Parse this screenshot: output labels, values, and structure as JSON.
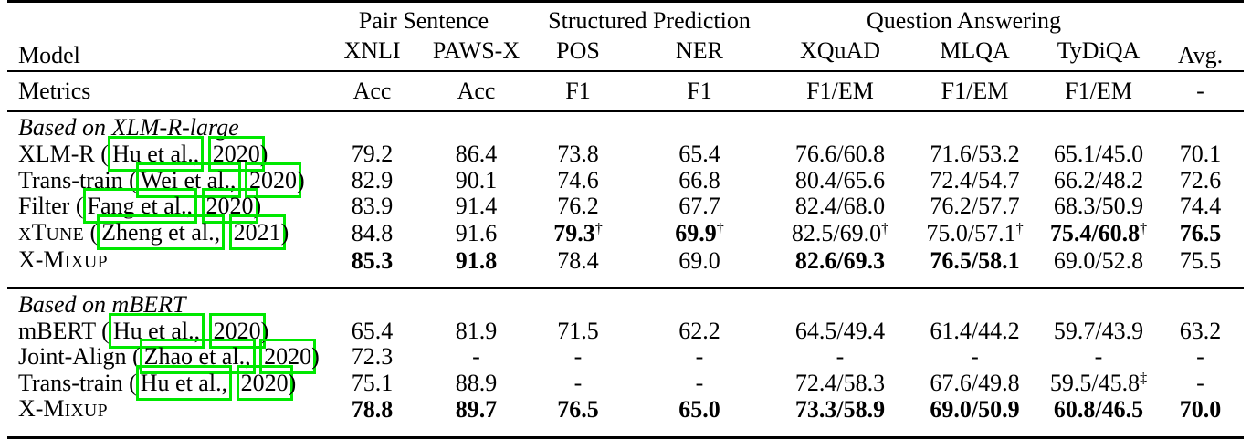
{
  "colors": {
    "citation_box": "#00e800",
    "text": "#000000",
    "background": "#ffffff"
  },
  "citation_format": {
    "open": "(",
    "close": ")",
    "sep": " "
  },
  "table": {
    "header": {
      "model_label": "Model",
      "avg_label": "Avg.",
      "groups": [
        {
          "label": "Pair Sentence",
          "span": 2
        },
        {
          "label": "Structured Prediction",
          "span": 2
        },
        {
          "label": "Question Answering",
          "span": 3
        }
      ],
      "columns": [
        "XNLI",
        "PAWS-X",
        "POS",
        "NER",
        "XQuAD",
        "MLQA",
        "TyDiQA"
      ]
    },
    "metrics": {
      "label": "Metrics",
      "values": [
        "Acc",
        "Acc",
        "F1",
        "F1",
        "F1/EM",
        "F1/EM",
        "F1/EM",
        "-"
      ]
    },
    "sections": [
      {
        "title": "Based on XLM-R-large",
        "rows": [
          {
            "model": {
              "parts": [
                {
                  "t": "XLM-R"
                }
              ],
              "cite": {
                "author": "Hu et al.,",
                "year": "2020"
              }
            },
            "cells": [
              {
                "t": "79.2"
              },
              {
                "t": "86.4"
              },
              {
                "t": "73.8"
              },
              {
                "t": "65.4"
              },
              {
                "t": "76.6/60.8"
              },
              {
                "t": "71.6/53.2"
              },
              {
                "t": "65.1/45.0"
              },
              {
                "t": "70.1"
              }
            ]
          },
          {
            "model": {
              "parts": [
                {
                  "t": "Trans-train"
                }
              ],
              "cite": {
                "author": "Wei et al.,",
                "year": "2020"
              }
            },
            "cells": [
              {
                "t": "82.9"
              },
              {
                "t": "90.1"
              },
              {
                "t": "74.6"
              },
              {
                "t": "66.8"
              },
              {
                "t": "80.4/65.6"
              },
              {
                "t": "72.4/54.7"
              },
              {
                "t": "66.2/48.2"
              },
              {
                "t": "72.6"
              }
            ]
          },
          {
            "model": {
              "parts": [
                {
                  "t": "Filter"
                }
              ],
              "cite": {
                "author": "Fang et al.,",
                "year": "2020"
              }
            },
            "cells": [
              {
                "t": "83.9"
              },
              {
                "t": "91.4"
              },
              {
                "t": "76.2"
              },
              {
                "t": "67.7"
              },
              {
                "t": "82.4/68.0"
              },
              {
                "t": "76.2/57.7"
              },
              {
                "t": "68.3/50.9"
              },
              {
                "t": "74.4"
              }
            ]
          },
          {
            "model": {
              "parts": [
                {
                  "t": "X",
                  "sc": true
                },
                {
                  "t": "T"
                },
                {
                  "t": "UNE",
                  "sc": true
                }
              ],
              "cite": {
                "author": "Zheng et al.,",
                "year": "2021"
              }
            },
            "cells": [
              {
                "t": "84.8"
              },
              {
                "t": "91.6"
              },
              {
                "t": "79.3",
                "bold": true,
                "sup": "†"
              },
              {
                "t": "69.9",
                "bold": true,
                "sup": "†"
              },
              {
                "t": "82.5/69.0",
                "sup": "†"
              },
              {
                "t": "75.0/57.1",
                "sup": "†"
              },
              {
                "t": "75.4/60.8",
                "bold": true,
                "sup": "†"
              },
              {
                "t": "76.5",
                "bold": true
              }
            ]
          },
          {
            "model": {
              "parts": [
                {
                  "t": "X-M"
                },
                {
                  "t": "IXUP",
                  "sc": true
                }
              ]
            },
            "cells": [
              {
                "t": "85.3",
                "bold": true
              },
              {
                "t": "91.8",
                "bold": true
              },
              {
                "t": "78.4"
              },
              {
                "t": "69.0"
              },
              {
                "t": "82.6/69.3",
                "bold": true
              },
              {
                "t": "76.5/58.1",
                "bold": true
              },
              {
                "t": "69.0/52.8"
              },
              {
                "t": "75.5"
              }
            ]
          }
        ]
      },
      {
        "title": "Based on mBERT",
        "rows": [
          {
            "model": {
              "parts": [
                {
                  "t": "mBERT"
                }
              ],
              "cite": {
                "author": "Hu et al.,",
                "year": "2020"
              }
            },
            "cells": [
              {
                "t": "65.4"
              },
              {
                "t": "81.9"
              },
              {
                "t": "71.5"
              },
              {
                "t": "62.2"
              },
              {
                "t": "64.5/49.4"
              },
              {
                "t": "61.4/44.2"
              },
              {
                "t": "59.7/43.9"
              },
              {
                "t": "63.2"
              }
            ]
          },
          {
            "model": {
              "parts": [
                {
                  "t": "Joint-Align"
                }
              ],
              "cite": {
                "author": "Zhao et al.,",
                "year": "2020"
              }
            },
            "cells": [
              {
                "t": "72.3"
              },
              {
                "t": "-"
              },
              {
                "t": "-"
              },
              {
                "t": "-"
              },
              {
                "t": "-"
              },
              {
                "t": "-"
              },
              {
                "t": "-"
              },
              {
                "t": "-"
              }
            ]
          },
          {
            "model": {
              "parts": [
                {
                  "t": "Trans-train"
                }
              ],
              "cite": {
                "author": "Hu et al.,",
                "year": "2020"
              }
            },
            "cells": [
              {
                "t": "75.1"
              },
              {
                "t": "88.9"
              },
              {
                "t": "-"
              },
              {
                "t": "-"
              },
              {
                "t": "72.4/58.3"
              },
              {
                "t": "67.6/49.8"
              },
              {
                "t": "59.5/45.8",
                "sup": "‡"
              },
              {
                "t": "-"
              }
            ]
          },
          {
            "model": {
              "parts": [
                {
                  "t": "X-M"
                },
                {
                  "t": "IXUP",
                  "sc": true
                }
              ]
            },
            "cells": [
              {
                "t": "78.8",
                "bold": true
              },
              {
                "t": "89.7",
                "bold": true
              },
              {
                "t": "76.5",
                "bold": true
              },
              {
                "t": "65.0",
                "bold": true
              },
              {
                "t": "73.3/58.9",
                "bold": true
              },
              {
                "t": "69.0/50.9",
                "bold": true
              },
              {
                "t": "60.8/46.5",
                "bold": true
              },
              {
                "t": "70.0",
                "bold": true
              }
            ]
          }
        ]
      }
    ]
  }
}
